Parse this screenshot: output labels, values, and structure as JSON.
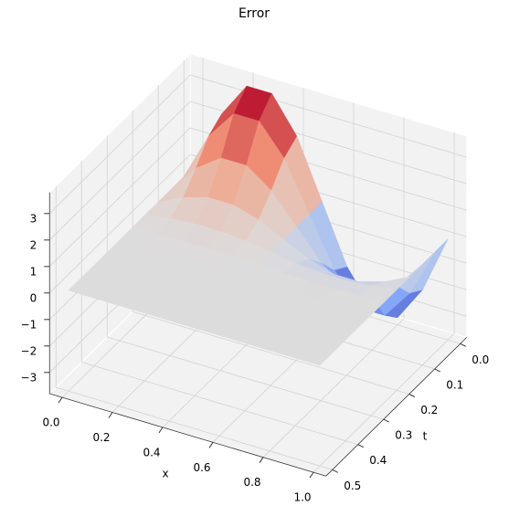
{
  "chart_data": {
    "type": "surface",
    "title": "Error",
    "xlabel": "x",
    "ylabel": "t",
    "colormap": "coolwarm",
    "x": [
      0,
      0.1,
      0.2,
      0.3,
      0.4,
      0.5,
      0.6,
      0.7,
      0.8,
      0.9,
      1
    ],
    "y": [
      0,
      0.05,
      0.1,
      0.15,
      0.2,
      0.25,
      0.3,
      0.35,
      0.4,
      0.45,
      0.5
    ],
    "z": [
      [
        0,
        2.18,
        3.52,
        3.52,
        2.18,
        0,
        -2.18,
        -3.52,
        -3.52,
        -2.18,
        0
      ],
      [
        0,
        1.83,
        2.96,
        2.96,
        1.83,
        0,
        -1.83,
        -2.96,
        -2.96,
        -1.83,
        0
      ],
      [
        0,
        1.09,
        1.76,
        1.76,
        1.09,
        0,
        -1.09,
        -1.76,
        -1.76,
        -1.09,
        0
      ],
      [
        0,
        0.46,
        0.74,
        0.74,
        0.46,
        0,
        -0.46,
        -0.74,
        -0.74,
        -0.46,
        0
      ],
      [
        0,
        0.14,
        0.22,
        0.22,
        0.14,
        0,
        -0.14,
        -0.22,
        -0.22,
        -0.14,
        0
      ],
      [
        0,
        0.03,
        0.05,
        0.05,
        0.03,
        0,
        -0.03,
        -0.05,
        -0.05,
        -0.03,
        0
      ],
      [
        0,
        0,
        0,
        0,
        0,
        0,
        0,
        0,
        0,
        0,
        0
      ],
      [
        0,
        0,
        0,
        0,
        0,
        0,
        0,
        0,
        0,
        0,
        0
      ],
      [
        0,
        0,
        0,
        0,
        0,
        0,
        0,
        0,
        0,
        0,
        0
      ],
      [
        0,
        0,
        0,
        0,
        0,
        0,
        0,
        0,
        0,
        0,
        0
      ],
      [
        0,
        0,
        0,
        0,
        0,
        0,
        0,
        0,
        0,
        0,
        0
      ]
    ],
    "xlim": [
      -0.05,
      1.05
    ],
    "ylim": [
      -0.025,
      0.525
    ],
    "zlim": [
      -3.8,
      3.8
    ],
    "xticks": [
      {
        "value": 0,
        "label": "0.0"
      },
      0.2,
      0.4,
      0.6,
      0.8,
      {
        "value": 1,
        "label": "1.0"
      }
    ],
    "yticks": [
      {
        "value": 0,
        "label": "0.0"
      },
      0.1,
      0.2,
      0.3,
      0.4,
      0.5
    ],
    "zticks": [
      {
        "value": -3,
        "label": "−3"
      },
      {
        "value": -2,
        "label": "−2"
      },
      {
        "value": -1,
        "label": "−1"
      },
      0,
      1,
      2,
      3
    ],
    "grid": true
  }
}
